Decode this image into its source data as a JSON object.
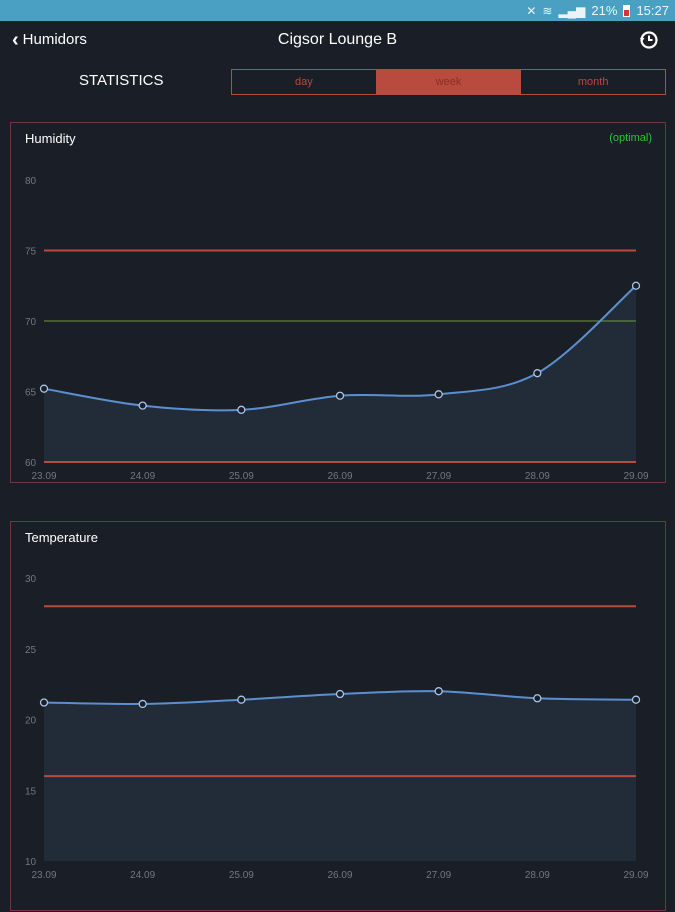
{
  "status_bar": {
    "battery": "21%",
    "time": "15:27"
  },
  "nav": {
    "back_label": "Humidors",
    "title": "Cigsor Lounge B",
    "history_icon": "history-icon"
  },
  "stats": {
    "label": "STATISTICS",
    "periods": [
      "day",
      "week",
      "month"
    ],
    "selected": "week"
  },
  "colors": {
    "accent": "#b94a3f",
    "line": "#5b8fcf",
    "optimal": "#6a9a3a",
    "fill": "#222c38"
  },
  "chart_data": [
    {
      "type": "line",
      "title": "Humidity",
      "badge": "(optimal)",
      "categories": [
        "23.09",
        "24.09",
        "25.09",
        "26.09",
        "27.09",
        "28.09",
        "29.09"
      ],
      "values": [
        65.2,
        64.0,
        63.7,
        64.7,
        64.8,
        66.3,
        72.5
      ],
      "ylim": [
        60,
        80
      ],
      "yticks": [
        "60",
        "65",
        "70",
        "75",
        "80"
      ],
      "limits": {
        "min": 60,
        "max": 75,
        "optimal": 70
      }
    },
    {
      "type": "line",
      "title": "Temperature",
      "categories": [
        "23.09",
        "24.09",
        "25.09",
        "26.09",
        "27.09",
        "28.09",
        "29.09"
      ],
      "values": [
        21.2,
        21.1,
        21.4,
        21.8,
        22.0,
        21.5,
        21.4
      ],
      "ylim": [
        10,
        30
      ],
      "yticks": [
        "10",
        "15",
        "20",
        "25",
        "30"
      ],
      "limits": {
        "min": 16,
        "max": 28
      }
    }
  ]
}
